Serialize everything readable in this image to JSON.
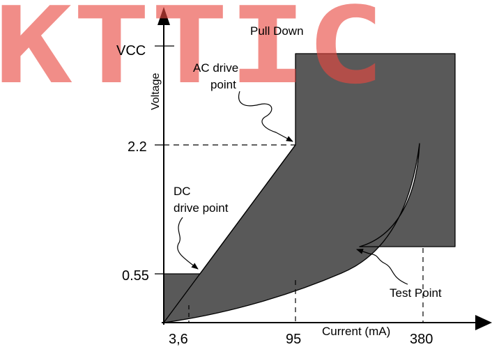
{
  "watermark": "KTTIC",
  "title": "Pull Down",
  "axes": {
    "y_label": "Voltage",
    "x_label": "Current (mA)",
    "y_ticks": [
      "VCC",
      "2.2",
      "0.55"
    ],
    "x_ticks": [
      "3,6",
      "95",
      "380"
    ]
  },
  "annotations": {
    "ac_drive_line1": "AC drive",
    "ac_drive_line2": "point",
    "dc_drive_line1": "DC",
    "dc_drive_line2": "drive point",
    "test_point": "Test Point"
  },
  "colors": {
    "region_fill": "#595959",
    "line": "#000000",
    "watermark": "#e8473f"
  }
}
